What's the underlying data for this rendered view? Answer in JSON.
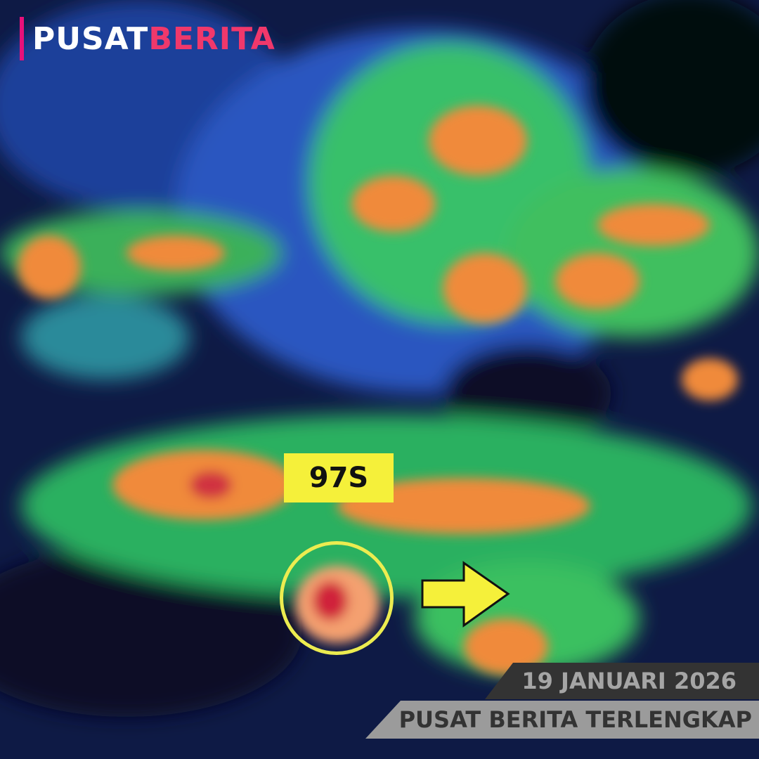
{
  "brand": {
    "part1": "PUSAT",
    "part2": "BERITA",
    "accent": "#f0386b",
    "bar_color": "#e8107a"
  },
  "map": {
    "storm_label": "97S",
    "circle_color": "#ecec50",
    "arrow_color": "#f5f03a",
    "arrow_direction": "east"
  },
  "footer": {
    "date": "19 JANUARI 2026",
    "tagline": "PUSAT BERITA TERLENGKAP"
  }
}
